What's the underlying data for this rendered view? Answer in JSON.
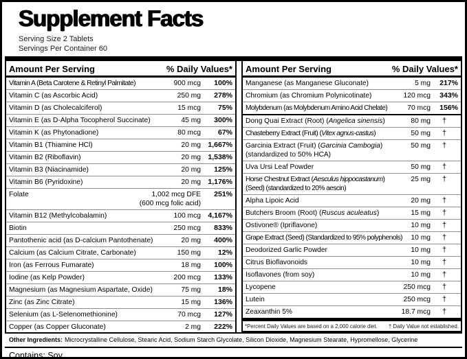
{
  "header": {
    "title": "Supplement Facts",
    "serving_size": "Serving Size 2 Tablets",
    "servings_per_container": "Servings Per Container 60"
  },
  "columns": [
    {
      "amount_header": "Amount Per Serving",
      "dv_header": "% Daily Values*",
      "rows": [
        {
          "name": "Vitamin A (Beta Carotene & Retinyl Palmitate)",
          "amount": "900 mcg",
          "pct": "100%",
          "tight": true
        },
        {
          "name": "Vitamin C (as Ascorbic Acid)",
          "amount": "250 mg",
          "pct": "278%"
        },
        {
          "name": "Vitamin D (as Cholecalciferol)",
          "amount": "15 mcg",
          "pct": "75%"
        },
        {
          "name": "Vitamin E (as D-Alpha Tocopherol Succinate)",
          "amount": "45 mg",
          "pct": "300%"
        },
        {
          "name": "Vitamin K (as Phytonadione)",
          "amount": "80 mcg",
          "pct": "67%"
        },
        {
          "name": "Vitamin B1 (Thiamine HCl)",
          "amount": "20 mg",
          "pct": "1,667%"
        },
        {
          "name": "Vitamin B2 (Riboflavin)",
          "amount": "20 mg",
          "pct": "1,538%"
        },
        {
          "name": "Vitamin B3 (Niacinamide)",
          "amount": "20 mg",
          "pct": "125%"
        },
        {
          "name": "Vitamin B6 (Pyridoxine)",
          "amount": "20 mg",
          "pct": "1,176%"
        },
        {
          "name": "Folate",
          "amount": "1,002 mcg DFE\n(600 mcg folic acid)",
          "pct": "251%"
        },
        {
          "name": "Vitamin B12 (Methylcobalamin)",
          "amount": "100 mcg",
          "pct": "4,167%"
        },
        {
          "name": "Biotin",
          "amount": "250 mcg",
          "pct": "833%"
        },
        {
          "name": "Pantothenic acid (as D-calcium Pantothenate)",
          "amount": "20 mg",
          "pct": "400%"
        },
        {
          "name": "Calcium (as Calcium Citrate, Carbonate)",
          "amount": "150 mg",
          "pct": "12%"
        },
        {
          "name": "Iron (as Ferrous Fumarate)",
          "amount": "18 mg",
          "pct": "100%"
        },
        {
          "name": "Iodine (as Kelp Powder)",
          "amount": "200 mcg",
          "pct": "133%"
        },
        {
          "name": "Magnesium (as Magnesium Aspartate, Oxide)",
          "amount": "75 mg",
          "pct": "18%"
        },
        {
          "name": "Zinc (as Zinc Citrate)",
          "amount": "15 mg",
          "pct": "136%"
        },
        {
          "name": "Selenium (as L-Selenomethionine)",
          "amount": "70 mcg",
          "pct": "127%"
        },
        {
          "name": "Copper (as Copper Gluconate)",
          "amount": "2 mg",
          "pct": "222%"
        }
      ]
    },
    {
      "amount_header": "Amount Per Serving",
      "dv_header": "% Daily Values*",
      "rows": [
        {
          "name": "Manganese (as Manganese Gluconate)",
          "amount": "5 mg",
          "pct": "217%"
        },
        {
          "name": "Chromium (as Chromium Polynicotinate)",
          "amount": "120 mcg",
          "pct": "343%"
        },
        {
          "name": "Molybdenum (as Molybdenum Amino Acid Chelate)",
          "amount": "70 mcg",
          "pct": "156%",
          "tight": true
        },
        {
          "name": "Dong Quai Extract (Root) (*Angelica sinensis*)",
          "amount": "80 mg",
          "pct": "†",
          "group": true
        },
        {
          "name": "Chasteberry Extract (Fruit) (*Vitex agnus-castus*)",
          "amount": "50 mg",
          "pct": "†",
          "tight": true
        },
        {
          "name": "Garcinia Extract (Fruit) (*Garcinia Cambogia*)\n(standardized to 50% HCA)",
          "amount": "50 mg",
          "pct": "†"
        },
        {
          "name": "Uva Ursi Leaf Powder",
          "amount": "50 mg",
          "pct": "†"
        },
        {
          "name": "Horse Chestnut Extract (*Aesculus hippocastanum*)\n(Seed) (standardized to 20% aescin)",
          "amount": "25 mg",
          "pct": "†",
          "tight": true
        },
        {
          "name": "Alpha Lipoic Acid",
          "amount": "20 mg",
          "pct": "†"
        },
        {
          "name": "Butchers Broom (Root) (*Ruscus aculeatus*)",
          "amount": "15 mg",
          "pct": "†"
        },
        {
          "name": "Ostivone® (Ipriflavone)",
          "amount": "10 mg",
          "pct": "†"
        },
        {
          "name": "Grape Extract (Seed) (Standardized to 95% polyphenols)",
          "amount": "10 mg",
          "pct": "†",
          "tight": true
        },
        {
          "name": "Deodorized Garlic Powder",
          "amount": "10 mg",
          "pct": "†"
        },
        {
          "name": "Citrus Bioflavonoids",
          "amount": "10 mg",
          "pct": "†"
        },
        {
          "name": "Isoflavones (from soy)",
          "amount": "10 mg",
          "pct": "†"
        },
        {
          "name": "Lycopene",
          "amount": "250 mcg",
          "pct": "†"
        },
        {
          "name": "Lutein",
          "amount": "250 mcg",
          "pct": "†"
        },
        {
          "name": "Zeaxanthin 5%",
          "amount": "18.7 mcg",
          "pct": "†"
        }
      ],
      "footnote_left": "*Percent Daily Values are based on a 2,000 calorie diet.",
      "footnote_right": "† Daily Value not established."
    }
  ],
  "other_ingredients": {
    "label": "Other Ingredients:",
    "text": "Microcrystalline Cellulose, Stearic Acid, Sodium Starch Glycolate, Silicon Dioxide, Magnesium Stearate, Hypromellose, Glycerine"
  },
  "contains": "Contains: Soy",
  "colors": {
    "text": "#000000",
    "border": "#000000",
    "separator": "#8f8f8f"
  }
}
